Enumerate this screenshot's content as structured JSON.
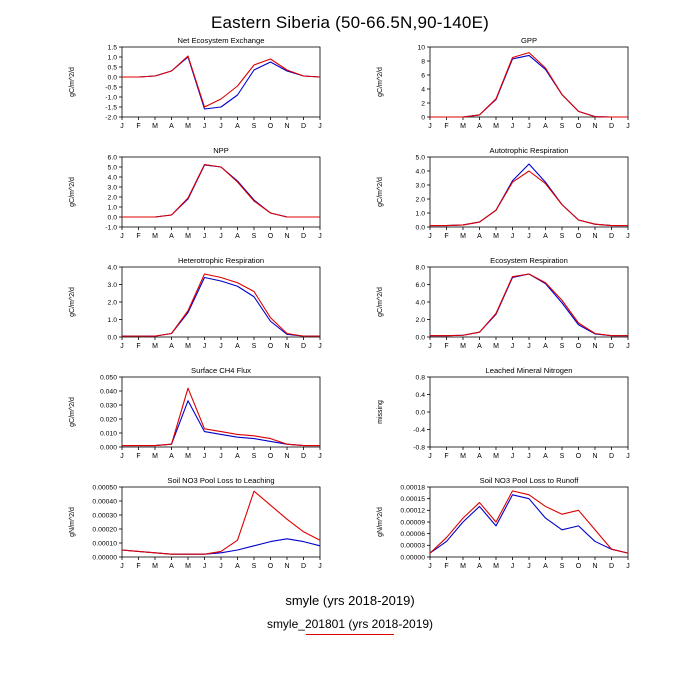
{
  "figure": {
    "title": "Eastern Siberia (50-66.5N,90-140E)",
    "months": [
      "J",
      "F",
      "M",
      "A",
      "M",
      "J",
      "J",
      "A",
      "S",
      "O",
      "N",
      "D",
      "J"
    ],
    "colors": {
      "smyle": "#0000cc",
      "smyle_201801": "#dd0000"
    },
    "legend": [
      {
        "label": "smyle (yrs 2018-2019)",
        "series": "smyle"
      },
      {
        "label": "smyle_201801 (yrs 2018-2019)",
        "series": "smyle_201801"
      }
    ]
  },
  "chart_data": [
    {
      "type": "line",
      "title": "Net Ecosystem Exchange",
      "ylabel": "gC/m^2/d",
      "ylim": [
        -2.0,
        1.5
      ],
      "yticks": [
        -2.0,
        -1.5,
        -1.0,
        -0.5,
        0.0,
        0.5,
        1.0,
        1.5
      ],
      "ydecimals": 1,
      "series": [
        {
          "name": "smyle",
          "values": [
            0.0,
            0.0,
            0.05,
            0.3,
            1.0,
            -1.6,
            -1.5,
            -0.9,
            0.35,
            0.75,
            0.3,
            0.05,
            0.0
          ]
        },
        {
          "name": "smyle_201801",
          "values": [
            0.0,
            0.0,
            0.05,
            0.3,
            1.05,
            -1.5,
            -1.1,
            -0.45,
            0.6,
            0.9,
            0.35,
            0.05,
            0.0
          ]
        }
      ]
    },
    {
      "type": "line",
      "title": "GPP",
      "ylabel": "gC/m^2/d",
      "ylim": [
        0,
        10
      ],
      "yticks": [
        0,
        2,
        4,
        6,
        8,
        10
      ],
      "ydecimals": 0,
      "series": [
        {
          "name": "smyle",
          "values": [
            0,
            0,
            0,
            0.3,
            2.5,
            8.3,
            8.8,
            6.8,
            3.2,
            0.8,
            0.05,
            0,
            0
          ]
        },
        {
          "name": "smyle_201801",
          "values": [
            0,
            0,
            0,
            0.3,
            2.6,
            8.5,
            9.2,
            7.0,
            3.2,
            0.8,
            0.05,
            0,
            0
          ]
        }
      ]
    },
    {
      "type": "line",
      "title": "NPP",
      "ylabel": "gC/m^2/d",
      "ylim": [
        -1.0,
        6.0
      ],
      "yticks": [
        -1.0,
        0.0,
        1.0,
        2.0,
        3.0,
        4.0,
        5.0,
        6.0
      ],
      "ydecimals": 1,
      "series": [
        {
          "name": "smyle",
          "values": [
            0.0,
            0.0,
            0.0,
            0.2,
            1.8,
            5.2,
            5.0,
            3.6,
            1.7,
            0.4,
            0.0,
            0.0,
            0.0
          ]
        },
        {
          "name": "smyle_201801",
          "values": [
            0.0,
            0.0,
            0.0,
            0.2,
            1.9,
            5.25,
            5.0,
            3.5,
            1.6,
            0.4,
            0.0,
            0.0,
            0.0
          ]
        }
      ]
    },
    {
      "type": "line",
      "title": "Autotrophic Respiration",
      "ylabel": "gC/m^2/d",
      "ylim": [
        0,
        5.0
      ],
      "yticks": [
        0.0,
        1.0,
        2.0,
        3.0,
        4.0,
        5.0
      ],
      "ydecimals": 1,
      "series": [
        {
          "name": "smyle",
          "values": [
            0.1,
            0.1,
            0.15,
            0.35,
            1.2,
            3.3,
            4.5,
            3.2,
            1.6,
            0.5,
            0.2,
            0.1,
            0.1
          ]
        },
        {
          "name": "smyle_201801",
          "values": [
            0.1,
            0.1,
            0.15,
            0.35,
            1.2,
            3.2,
            4.0,
            3.1,
            1.6,
            0.5,
            0.2,
            0.1,
            0.1
          ]
        }
      ]
    },
    {
      "type": "line",
      "title": "Heterotrophic Respiration",
      "ylabel": "gC/m^2/d",
      "ylim": [
        0,
        4.0
      ],
      "yticks": [
        0.0,
        1.0,
        2.0,
        3.0,
        4.0
      ],
      "ydecimals": 1,
      "series": [
        {
          "name": "smyle",
          "values": [
            0.05,
            0.05,
            0.05,
            0.2,
            1.4,
            3.4,
            3.2,
            2.9,
            2.3,
            0.9,
            0.15,
            0.05,
            0.05
          ]
        },
        {
          "name": "smyle_201801",
          "values": [
            0.05,
            0.05,
            0.05,
            0.2,
            1.5,
            3.6,
            3.4,
            3.1,
            2.6,
            1.1,
            0.2,
            0.05,
            0.05
          ]
        }
      ]
    },
    {
      "type": "line",
      "title": "Ecosystem Respiration",
      "ylabel": "gC/m^2/d",
      "ylim": [
        0,
        8.0
      ],
      "yticks": [
        0.0,
        2.0,
        4.0,
        6.0,
        8.0
      ],
      "ydecimals": 1,
      "series": [
        {
          "name": "smyle",
          "values": [
            0.15,
            0.15,
            0.2,
            0.55,
            2.6,
            6.8,
            7.2,
            6.1,
            3.9,
            1.4,
            0.35,
            0.15,
            0.15
          ]
        },
        {
          "name": "smyle_201801",
          "values": [
            0.15,
            0.15,
            0.2,
            0.55,
            2.7,
            6.9,
            7.2,
            6.2,
            4.2,
            1.6,
            0.4,
            0.15,
            0.15
          ]
        }
      ]
    },
    {
      "type": "line",
      "title": "Surface CH4 Flux",
      "ylabel": "gC/m^2/d",
      "ylim": [
        0,
        0.05
      ],
      "yticks": [
        0.0,
        0.01,
        0.02,
        0.03,
        0.04,
        0.05
      ],
      "ydecimals": 3,
      "series": [
        {
          "name": "smyle",
          "values": [
            0.001,
            0.001,
            0.001,
            0.002,
            0.033,
            0.011,
            0.009,
            0.007,
            0.006,
            0.004,
            0.002,
            0.001,
            0.001
          ]
        },
        {
          "name": "smyle_201801",
          "values": [
            0.001,
            0.001,
            0.001,
            0.002,
            0.042,
            0.013,
            0.011,
            0.009,
            0.008,
            0.006,
            0.002,
            0.001,
            0.001
          ]
        }
      ]
    },
    {
      "type": "line",
      "title": "Leached Mineral Nitrogen",
      "ylabel": "missing",
      "ylim": [
        -0.8,
        0.8
      ],
      "yticks": [
        -0.8,
        -0.4,
        0.0,
        0.4,
        0.8
      ],
      "ydecimals": 1,
      "series": []
    },
    {
      "type": "line",
      "title": "Soil NO3 Pool Loss to Leaching",
      "ylabel": "gN/m^2/d",
      "ylim": [
        0,
        0.0005
      ],
      "yticks": [
        0.0,
        0.0001,
        0.0002,
        0.0003,
        0.0004,
        0.0005
      ],
      "ydecimals": 5,
      "series": [
        {
          "name": "smyle",
          "values": [
            5e-05,
            4e-05,
            3e-05,
            2e-05,
            2e-05,
            2e-05,
            3e-05,
            5e-05,
            8e-05,
            0.00011,
            0.00013,
            0.00011,
            8e-05
          ]
        },
        {
          "name": "smyle_201801",
          "values": [
            5e-05,
            4e-05,
            3e-05,
            2e-05,
            2e-05,
            2e-05,
            4e-05,
            0.00012,
            0.00047,
            0.00037,
            0.00027,
            0.00018,
            0.00012
          ]
        }
      ]
    },
    {
      "type": "line",
      "title": "Soil NO3 Pool Loss to Runoff",
      "ylabel": "gN/m^2/d",
      "ylim": [
        0,
        0.00018
      ],
      "yticks": [
        0.0,
        3e-05,
        6e-05,
        9e-05,
        0.00012,
        0.00015,
        0.00018
      ],
      "ydecimals": 5,
      "series": [
        {
          "name": "smyle",
          "values": [
            1e-05,
            4e-05,
            9e-05,
            0.00013,
            8e-05,
            0.00016,
            0.00015,
            0.0001,
            7e-05,
            8e-05,
            4e-05,
            2e-05,
            1e-05
          ]
        },
        {
          "name": "smyle_201801",
          "values": [
            1e-05,
            5e-05,
            0.0001,
            0.00014,
            9e-05,
            0.00017,
            0.00016,
            0.00013,
            0.00011,
            0.00012,
            7e-05,
            2e-05,
            1e-05
          ]
        }
      ]
    }
  ]
}
